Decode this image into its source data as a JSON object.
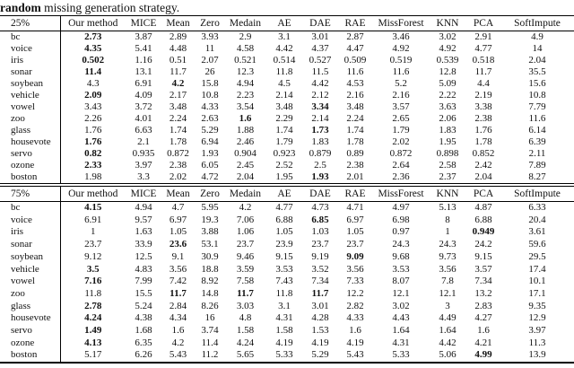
{
  "caption": {
    "bold_text": "random",
    "rest_text": " missing generation strategy."
  },
  "tables": [
    {
      "missing_rate": "25%",
      "header": [
        "25%",
        "Our method",
        "MICE",
        "Mean",
        "Zero",
        "Medain",
        "AE",
        "DAE",
        "RAE",
        "MissForest",
        "KNN",
        "PCA",
        "SoftImpute"
      ],
      "rows": [
        {
          "label": "bc",
          "values": [
            "2.73",
            "3.87",
            "2.89",
            "3.93",
            "2.9",
            "3.1",
            "3.01",
            "2.87",
            "3.46",
            "3.02",
            "2.91",
            "4.9"
          ],
          "bold": [
            0
          ]
        },
        {
          "label": "voice",
          "values": [
            "4.35",
            "5.41",
            "4.48",
            "11",
            "4.58",
            "4.42",
            "4.37",
            "4.47",
            "4.92",
            "4.92",
            "4.77",
            "14"
          ],
          "bold": [
            0
          ]
        },
        {
          "label": "iris",
          "values": [
            "0.502",
            "1.16",
            "0.51",
            "2.07",
            "0.521",
            "0.514",
            "0.527",
            "0.509",
            "0.519",
            "0.539",
            "0.518",
            "2.04"
          ],
          "bold": [
            0
          ]
        },
        {
          "label": "sonar",
          "values": [
            "11.4",
            "13.1",
            "11.7",
            "26",
            "12.3",
            "11.8",
            "11.5",
            "11.6",
            "11.6",
            "12.8",
            "11.7",
            "35.5"
          ],
          "bold": [
            0
          ]
        },
        {
          "label": "soybean",
          "values": [
            "4.3",
            "6.91",
            "4.2",
            "15.8",
            "4.94",
            "4.5",
            "4.42",
            "4.53",
            "5.2",
            "5.09",
            "4.4",
            "15.6"
          ],
          "bold": [
            2
          ]
        },
        {
          "label": "vehicle",
          "values": [
            "2.09",
            "4.09",
            "2.17",
            "10.8",
            "2.23",
            "2.14",
            "2.12",
            "2.16",
            "2.16",
            "2.22",
            "2.19",
            "10.8"
          ],
          "bold": [
            0
          ]
        },
        {
          "label": "vowel",
          "values": [
            "3.43",
            "3.72",
            "3.48",
            "4.33",
            "3.54",
            "3.48",
            "3.34",
            "3.48",
            "3.57",
            "3.63",
            "3.38",
            "7.79"
          ],
          "bold": [
            6
          ]
        },
        {
          "label": "zoo",
          "values": [
            "2.26",
            "4.01",
            "2.24",
            "2.63",
            "1.6",
            "2.29",
            "2.14",
            "2.24",
            "2.65",
            "2.06",
            "2.38",
            "11.6"
          ],
          "bold": [
            4
          ]
        },
        {
          "label": "glass",
          "values": [
            "1.76",
            "6.63",
            "1.74",
            "5.29",
            "1.88",
            "1.74",
            "1.73",
            "1.74",
            "1.79",
            "1.83",
            "1.76",
            "6.14"
          ],
          "bold": [
            6
          ]
        },
        {
          "label": "housevote",
          "values": [
            "1.76",
            "2.1",
            "1.78",
            "6.94",
            "2.46",
            "1.79",
            "1.83",
            "1.78",
            "2.02",
            "1.95",
            "1.78",
            "6.39"
          ],
          "bold": [
            0
          ]
        },
        {
          "label": "servo",
          "values": [
            "0.82",
            "0.935",
            "0.872",
            "1.93",
            "0.904",
            "0.923",
            "0.879",
            "0.89",
            "0.872",
            "0.898",
            "0.852",
            "2.11"
          ],
          "bold": [
            0
          ]
        },
        {
          "label": "ozone",
          "values": [
            "2.33",
            "3.97",
            "2.38",
            "6.05",
            "2.45",
            "2.52",
            "2.5",
            "2.38",
            "2.64",
            "2.58",
            "2.42",
            "7.89"
          ],
          "bold": [
            0
          ]
        },
        {
          "label": "boston",
          "values": [
            "1.98",
            "3.3",
            "2.02",
            "4.72",
            "2.04",
            "1.95",
            "1.93",
            "2.01",
            "2.36",
            "2.37",
            "2.04",
            "8.27"
          ],
          "bold": [
            6
          ]
        }
      ]
    },
    {
      "missing_rate": "75%",
      "header": [
        "75%",
        "Our method",
        "MICE",
        "Mean",
        "Zero",
        "Medain",
        "AE",
        "DAE",
        "RAE",
        "MissForest",
        "KNN",
        "PCA",
        "SoftImpute"
      ],
      "rows": [
        {
          "label": "bc",
          "values": [
            "4.15",
            "4.94",
            "4.7",
            "5.95",
            "4.2",
            "4.77",
            "4.73",
            "4.71",
            "4.97",
            "5.13",
            "4.87",
            "6.33"
          ],
          "bold": [
            0
          ]
        },
        {
          "label": "voice",
          "values": [
            "6.91",
            "9.57",
            "6.97",
            "19.3",
            "7.06",
            "6.88",
            "6.85",
            "6.97",
            "6.98",
            "8",
            "6.88",
            "20.4"
          ],
          "bold": [
            6
          ]
        },
        {
          "label": "iris",
          "values": [
            "1",
            "1.63",
            "1.05",
            "3.88",
            "1.06",
            "1.05",
            "1.03",
            "1.05",
            "0.97",
            "1",
            "0.949",
            "3.61"
          ],
          "bold": [
            10
          ]
        },
        {
          "label": "sonar",
          "values": [
            "23.7",
            "33.9",
            "23.6",
            "53.1",
            "23.7",
            "23.9",
            "23.7",
            "23.7",
            "24.3",
            "24.3",
            "24.2",
            "59.6"
          ],
          "bold": [
            2
          ]
        },
        {
          "label": "soybean",
          "values": [
            "9.12",
            "12.5",
            "9.1",
            "30.9",
            "9.46",
            "9.15",
            "9.19",
            "9.09",
            "9.68",
            "9.73",
            "9.15",
            "29.5"
          ],
          "bold": [
            7
          ]
        },
        {
          "label": "vehicle",
          "values": [
            "3.5",
            "4.83",
            "3.56",
            "18.8",
            "3.59",
            "3.53",
            "3.52",
            "3.56",
            "3.53",
            "3.56",
            "3.57",
            "17.4"
          ],
          "bold": [
            0
          ]
        },
        {
          "label": "vowel",
          "values": [
            "7.16",
            "7.99",
            "7.42",
            "8.92",
            "7.58",
            "7.43",
            "7.34",
            "7.33",
            "8.07",
            "7.8",
            "7.34",
            "10.1"
          ],
          "bold": [
            0
          ]
        },
        {
          "label": "zoo",
          "values": [
            "11.8",
            "15.5",
            "11.7",
            "14.8",
            "11.7",
            "11.8",
            "11.7",
            "12.2",
            "12.1",
            "12.1",
            "13.2",
            "17.1"
          ],
          "bold": [
            2,
            4,
            6
          ]
        },
        {
          "label": "glass",
          "values": [
            "2.78",
            "5.24",
            "2.84",
            "8.26",
            "3.03",
            "3.1",
            "3.01",
            "2.82",
            "3.02",
            "3",
            "2.83",
            "9.35"
          ],
          "bold": [
            0
          ]
        },
        {
          "label": "housevote",
          "values": [
            "4.24",
            "4.38",
            "4.34",
            "16",
            "4.8",
            "4.31",
            "4.28",
            "4.33",
            "4.43",
            "4.49",
            "4.27",
            "12.9"
          ],
          "bold": [
            0
          ]
        },
        {
          "label": "servo",
          "values": [
            "1.49",
            "1.68",
            "1.6",
            "3.74",
            "1.58",
            "1.58",
            "1.53",
            "1.6",
            "1.64",
            "1.64",
            "1.6",
            "3.97"
          ],
          "bold": [
            0
          ]
        },
        {
          "label": "ozone",
          "values": [
            "4.13",
            "6.35",
            "4.2",
            "11.4",
            "4.24",
            "4.19",
            "4.19",
            "4.19",
            "4.31",
            "4.42",
            "4.21",
            "11.3"
          ],
          "bold": [
            0
          ]
        },
        {
          "label": "boston",
          "values": [
            "5.17",
            "6.26",
            "5.43",
            "11.2",
            "5.65",
            "5.33",
            "5.29",
            "5.43",
            "5.33",
            "5.06",
            "4.99",
            "13.9"
          ],
          "bold": [
            10
          ]
        }
      ]
    }
  ]
}
